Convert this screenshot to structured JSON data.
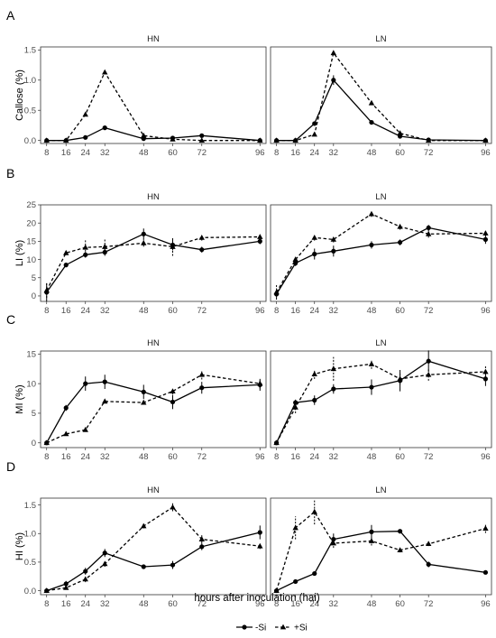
{
  "x_axis_title": "hours after inoculation (hai)",
  "x_ticks": [
    8,
    16,
    24,
    32,
    48,
    60,
    72,
    96
  ],
  "legend": [
    {
      "label": "-Si",
      "marker": "circle",
      "dash": "solid"
    },
    {
      "label": "+Si",
      "marker": "triangle",
      "dash": "dashed"
    }
  ],
  "colors": {
    "line": "#000000",
    "frame": "#333333",
    "tick_text": "#4d4d4d"
  },
  "chart_data": [
    {
      "type": "line",
      "panel_label": "A",
      "ylabel": "Callose (%)",
      "ylim": [
        -0.05,
        1.55
      ],
      "yticks": [
        0.0,
        0.5,
        1.0,
        1.5
      ],
      "ytick_labels": [
        "0.0",
        "0.5",
        "1.0",
        "1.5"
      ],
      "x": [
        8,
        16,
        24,
        32,
        48,
        60,
        72,
        96
      ],
      "facets": [
        {
          "name": "HN",
          "series": [
            {
              "name": "-Si",
              "values": [
                0.0,
                0.0,
                0.05,
                0.21,
                0.03,
                0.04,
                0.08,
                0.0
              ],
              "err": [
                0,
                0,
                0,
                0,
                0,
                0,
                0,
                0
              ]
            },
            {
              "name": "+Si",
              "values": [
                0.0,
                0.0,
                0.43,
                1.13,
                0.08,
                0.02,
                0.0,
                0.0
              ],
              "err": [
                0,
                0,
                0,
                0,
                0,
                0,
                0,
                0
              ]
            }
          ]
        },
        {
          "name": "LN",
          "series": [
            {
              "name": "-Si",
              "values": [
                0.0,
                0.0,
                0.28,
                1.0,
                0.3,
                0.07,
                0.01,
                0.0
              ],
              "err": [
                0,
                0,
                0,
                0.08,
                0,
                0,
                0,
                0
              ]
            },
            {
              "name": "+Si",
              "values": [
                0.0,
                0.0,
                0.1,
                1.45,
                0.62,
                0.12,
                0.0,
                0.0
              ],
              "err": [
                0,
                0,
                0,
                0,
                0,
                0,
                0,
                0
              ]
            }
          ]
        }
      ]
    },
    {
      "type": "line",
      "panel_label": "B",
      "ylabel": "LI (%)",
      "ylim": [
        -1.5,
        25
      ],
      "yticks": [
        0,
        5,
        10,
        15,
        20,
        25
      ],
      "ytick_labels": [
        "0",
        "5",
        "10",
        "15",
        "20",
        "25"
      ],
      "x": [
        8,
        16,
        24,
        32,
        48,
        60,
        72,
        96
      ],
      "facets": [
        {
          "name": "HN",
          "series": [
            {
              "name": "-Si",
              "values": [
                1.0,
                8.5,
                11.3,
                12.0,
                17.0,
                14.0,
                12.7,
                15.0
              ],
              "err": [
                2.5,
                0.5,
                0.8,
                1.0,
                1.5,
                1.5,
                0.8,
                0.8
              ]
            },
            {
              "name": "+Si",
              "values": [
                1.5,
                11.8,
                13.3,
                13.5,
                14.5,
                13.5,
                16.0,
                16.2
              ],
              "err": [
                2.0,
                0.5,
                2.0,
                2.0,
                1.0,
                2.5,
                0.8,
                0.8
              ]
            }
          ]
        },
        {
          "name": "LN",
          "series": [
            {
              "name": "-Si",
              "values": [
                0.5,
                9.0,
                11.5,
                12.3,
                14.0,
                14.7,
                18.7,
                15.5
              ],
              "err": [
                1.0,
                0.8,
                1.5,
                1.5,
                1.0,
                0.8,
                0.8,
                1.2
              ]
            },
            {
              "name": "+Si",
              "values": [
                1.0,
                10.0,
                16.0,
                15.5,
                22.5,
                19.0,
                17.0,
                17.2
              ],
              "err": [
                2.0,
                0.8,
                0.8,
                0.8,
                0.8,
                0.8,
                1.0,
                0.8
              ]
            }
          ]
        }
      ]
    },
    {
      "type": "line",
      "panel_label": "C",
      "ylabel": "MI (%)",
      "ylim": [
        -0.8,
        15.5
      ],
      "yticks": [
        0,
        5,
        10,
        15
      ],
      "ytick_labels": [
        "0",
        "5",
        "10",
        "15"
      ],
      "x": [
        8,
        16,
        24,
        32,
        48,
        60,
        72,
        96
      ],
      "facets": [
        {
          "name": "HN",
          "series": [
            {
              "name": "-Si",
              "values": [
                0.0,
                5.9,
                10.0,
                10.3,
                8.6,
                6.9,
                9.3,
                9.8
              ],
              "err": [
                0,
                0.5,
                1.2,
                1.2,
                1.2,
                1.2,
                1.0,
                1.0
              ]
            },
            {
              "name": "+Si",
              "values": [
                0.0,
                1.5,
                2.2,
                7.0,
                6.8,
                8.7,
                11.5,
                10.0
              ],
              "err": [
                0,
                0.2,
                0.3,
                0.3,
                0.3,
                0.5,
                0.8,
                0.8
              ]
            }
          ]
        },
        {
          "name": "LN",
          "series": [
            {
              "name": "-Si",
              "values": [
                0.0,
                6.8,
                7.2,
                9.1,
                9.4,
                10.5,
                13.8,
                10.8
              ],
              "err": [
                0,
                0.5,
                0.8,
                0.8,
                1.3,
                1.8,
                1.8,
                1.2
              ]
            },
            {
              "name": "+Si",
              "values": [
                0.0,
                6.0,
                11.6,
                12.5,
                13.3,
                10.8,
                11.5,
                12.0
              ],
              "err": [
                0,
                1.0,
                0.8,
                2.0,
                0.8,
                1.0,
                1.0,
                1.0
              ]
            }
          ]
        }
      ]
    },
    {
      "type": "line",
      "panel_label": "D",
      "ylabel": "HI (%)",
      "ylim": [
        -0.07,
        1.62
      ],
      "yticks": [
        0.0,
        0.5,
        1.0,
        1.5
      ],
      "ytick_labels": [
        "0.0",
        "0.5",
        "1.0",
        "1.5"
      ],
      "x": [
        8,
        16,
        24,
        32,
        48,
        60,
        72,
        96
      ],
      "facets": [
        {
          "name": "HN",
          "series": [
            {
              "name": "-Si",
              "values": [
                0.0,
                0.12,
                0.34,
                0.66,
                0.42,
                0.45,
                0.77,
                1.02
              ],
              "err": [
                0,
                0.05,
                0.06,
                0.07,
                0.03,
                0.07,
                0.06,
                0.12
              ]
            },
            {
              "name": "+Si",
              "values": [
                0.0,
                0.05,
                0.2,
                0.47,
                1.13,
                1.46,
                0.9,
                0.78
              ],
              "err": [
                0,
                0.03,
                0.05,
                0.05,
                0.04,
                0.07,
                0.07,
                0.05
              ]
            }
          ]
        },
        {
          "name": "LN",
          "series": [
            {
              "name": "-Si",
              "values": [
                0.0,
                0.16,
                0.3,
                0.9,
                1.03,
                1.04,
                0.46,
                0.32
              ],
              "err": [
                0,
                0.02,
                0.03,
                0.1,
                0.12,
                0.03,
                0.05,
                0.02
              ]
            },
            {
              "name": "+Si",
              "values": [
                0.0,
                1.1,
                1.38,
                0.83,
                0.87,
                0.71,
                0.82,
                1.09
              ],
              "err": [
                0,
                0.2,
                0.22,
                0.08,
                0.08,
                0.04,
                0.04,
                0.08
              ]
            }
          ]
        }
      ]
    }
  ]
}
